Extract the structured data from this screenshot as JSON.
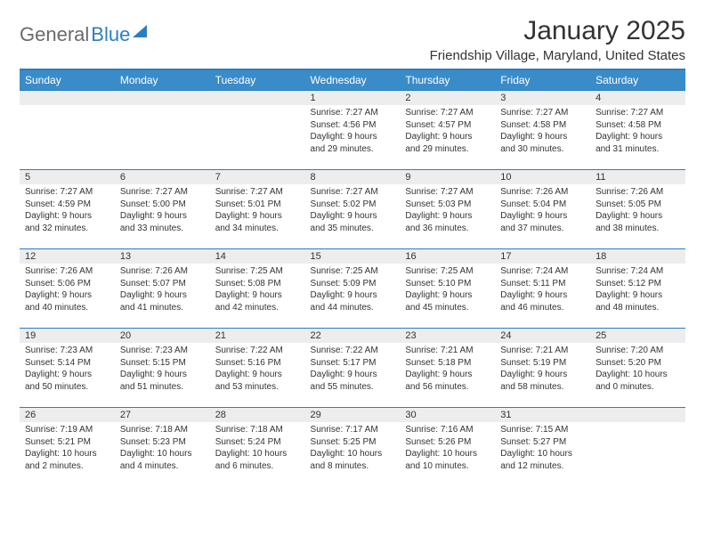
{
  "brand": {
    "part1": "General",
    "part2": "Blue"
  },
  "title": "January 2025",
  "location": "Friendship Village, Maryland, United States",
  "colors": {
    "header_bg": "#3a8cc9",
    "border": "#2a7fc2",
    "daynum_bg": "#ededed",
    "text": "#333333",
    "logo_gray": "#6a6a6a"
  },
  "weekdays": [
    "Sunday",
    "Monday",
    "Tuesday",
    "Wednesday",
    "Thursday",
    "Friday",
    "Saturday"
  ],
  "weeks": [
    [
      {
        "n": "",
        "lines": []
      },
      {
        "n": "",
        "lines": []
      },
      {
        "n": "",
        "lines": []
      },
      {
        "n": "1",
        "lines": [
          "Sunrise: 7:27 AM",
          "Sunset: 4:56 PM",
          "Daylight: 9 hours",
          "and 29 minutes."
        ]
      },
      {
        "n": "2",
        "lines": [
          "Sunrise: 7:27 AM",
          "Sunset: 4:57 PM",
          "Daylight: 9 hours",
          "and 29 minutes."
        ]
      },
      {
        "n": "3",
        "lines": [
          "Sunrise: 7:27 AM",
          "Sunset: 4:58 PM",
          "Daylight: 9 hours",
          "and 30 minutes."
        ]
      },
      {
        "n": "4",
        "lines": [
          "Sunrise: 7:27 AM",
          "Sunset: 4:58 PM",
          "Daylight: 9 hours",
          "and 31 minutes."
        ]
      }
    ],
    [
      {
        "n": "5",
        "lines": [
          "Sunrise: 7:27 AM",
          "Sunset: 4:59 PM",
          "Daylight: 9 hours",
          "and 32 minutes."
        ]
      },
      {
        "n": "6",
        "lines": [
          "Sunrise: 7:27 AM",
          "Sunset: 5:00 PM",
          "Daylight: 9 hours",
          "and 33 minutes."
        ]
      },
      {
        "n": "7",
        "lines": [
          "Sunrise: 7:27 AM",
          "Sunset: 5:01 PM",
          "Daylight: 9 hours",
          "and 34 minutes."
        ]
      },
      {
        "n": "8",
        "lines": [
          "Sunrise: 7:27 AM",
          "Sunset: 5:02 PM",
          "Daylight: 9 hours",
          "and 35 minutes."
        ]
      },
      {
        "n": "9",
        "lines": [
          "Sunrise: 7:27 AM",
          "Sunset: 5:03 PM",
          "Daylight: 9 hours",
          "and 36 minutes."
        ]
      },
      {
        "n": "10",
        "lines": [
          "Sunrise: 7:26 AM",
          "Sunset: 5:04 PM",
          "Daylight: 9 hours",
          "and 37 minutes."
        ]
      },
      {
        "n": "11",
        "lines": [
          "Sunrise: 7:26 AM",
          "Sunset: 5:05 PM",
          "Daylight: 9 hours",
          "and 38 minutes."
        ]
      }
    ],
    [
      {
        "n": "12",
        "lines": [
          "Sunrise: 7:26 AM",
          "Sunset: 5:06 PM",
          "Daylight: 9 hours",
          "and 40 minutes."
        ]
      },
      {
        "n": "13",
        "lines": [
          "Sunrise: 7:26 AM",
          "Sunset: 5:07 PM",
          "Daylight: 9 hours",
          "and 41 minutes."
        ]
      },
      {
        "n": "14",
        "lines": [
          "Sunrise: 7:25 AM",
          "Sunset: 5:08 PM",
          "Daylight: 9 hours",
          "and 42 minutes."
        ]
      },
      {
        "n": "15",
        "lines": [
          "Sunrise: 7:25 AM",
          "Sunset: 5:09 PM",
          "Daylight: 9 hours",
          "and 44 minutes."
        ]
      },
      {
        "n": "16",
        "lines": [
          "Sunrise: 7:25 AM",
          "Sunset: 5:10 PM",
          "Daylight: 9 hours",
          "and 45 minutes."
        ]
      },
      {
        "n": "17",
        "lines": [
          "Sunrise: 7:24 AM",
          "Sunset: 5:11 PM",
          "Daylight: 9 hours",
          "and 46 minutes."
        ]
      },
      {
        "n": "18",
        "lines": [
          "Sunrise: 7:24 AM",
          "Sunset: 5:12 PM",
          "Daylight: 9 hours",
          "and 48 minutes."
        ]
      }
    ],
    [
      {
        "n": "19",
        "lines": [
          "Sunrise: 7:23 AM",
          "Sunset: 5:14 PM",
          "Daylight: 9 hours",
          "and 50 minutes."
        ]
      },
      {
        "n": "20",
        "lines": [
          "Sunrise: 7:23 AM",
          "Sunset: 5:15 PM",
          "Daylight: 9 hours",
          "and 51 minutes."
        ]
      },
      {
        "n": "21",
        "lines": [
          "Sunrise: 7:22 AM",
          "Sunset: 5:16 PM",
          "Daylight: 9 hours",
          "and 53 minutes."
        ]
      },
      {
        "n": "22",
        "lines": [
          "Sunrise: 7:22 AM",
          "Sunset: 5:17 PM",
          "Daylight: 9 hours",
          "and 55 minutes."
        ]
      },
      {
        "n": "23",
        "lines": [
          "Sunrise: 7:21 AM",
          "Sunset: 5:18 PM",
          "Daylight: 9 hours",
          "and 56 minutes."
        ]
      },
      {
        "n": "24",
        "lines": [
          "Sunrise: 7:21 AM",
          "Sunset: 5:19 PM",
          "Daylight: 9 hours",
          "and 58 minutes."
        ]
      },
      {
        "n": "25",
        "lines": [
          "Sunrise: 7:20 AM",
          "Sunset: 5:20 PM",
          "Daylight: 10 hours",
          "and 0 minutes."
        ]
      }
    ],
    [
      {
        "n": "26",
        "lines": [
          "Sunrise: 7:19 AM",
          "Sunset: 5:21 PM",
          "Daylight: 10 hours",
          "and 2 minutes."
        ]
      },
      {
        "n": "27",
        "lines": [
          "Sunrise: 7:18 AM",
          "Sunset: 5:23 PM",
          "Daylight: 10 hours",
          "and 4 minutes."
        ]
      },
      {
        "n": "28",
        "lines": [
          "Sunrise: 7:18 AM",
          "Sunset: 5:24 PM",
          "Daylight: 10 hours",
          "and 6 minutes."
        ]
      },
      {
        "n": "29",
        "lines": [
          "Sunrise: 7:17 AM",
          "Sunset: 5:25 PM",
          "Daylight: 10 hours",
          "and 8 minutes."
        ]
      },
      {
        "n": "30",
        "lines": [
          "Sunrise: 7:16 AM",
          "Sunset: 5:26 PM",
          "Daylight: 10 hours",
          "and 10 minutes."
        ]
      },
      {
        "n": "31",
        "lines": [
          "Sunrise: 7:15 AM",
          "Sunset: 5:27 PM",
          "Daylight: 10 hours",
          "and 12 minutes."
        ]
      },
      {
        "n": "",
        "lines": []
      }
    ]
  ]
}
